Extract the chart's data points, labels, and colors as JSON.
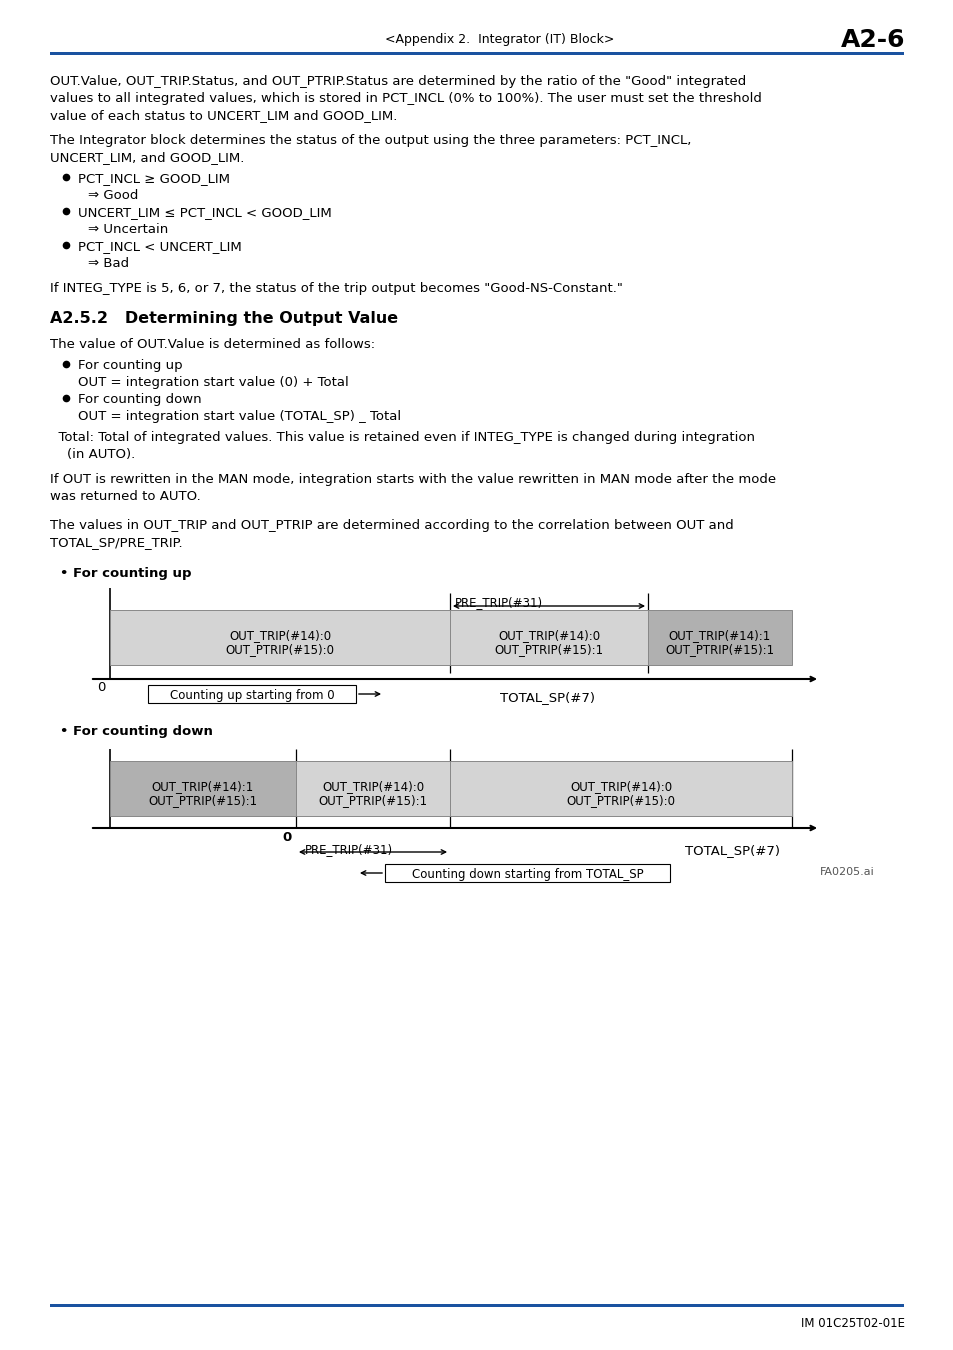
{
  "page_header_left": "<Appendix 2.  Integrator (IT) Block>",
  "page_header_right": "A2-6",
  "header_line_color": "#1a52a0",
  "body_text": [
    "OUT.Value, OUT_TRIP.Status, and OUT_PTRIP.Status are determined by the ratio of the \"Good\" integrated",
    "values to all integrated values, which is stored in PCT_INCL (0% to 100%). The user must set the threshold",
    "value of each status to UNCERT_LIM and GOOD_LIM."
  ],
  "body_text2": "The Integrator block determines the status of the output using the three parameters: PCT_INCL,",
  "body_text3": "UNCERT_LIM, and GOOD_LIM.",
  "bullets": [
    {
      "text": "PCT_INCL ≥ GOOD_LIM",
      "indent": 1
    },
    {
      "text": "⇒ Good",
      "indent": 2
    },
    {
      "text": "UNCERT_LIM ≤ PCT_INCL < GOOD_LIM",
      "indent": 1
    },
    {
      "text": "⇒ Uncertain",
      "indent": 2
    },
    {
      "text": "PCT_INCL < UNCERT_LIM",
      "indent": 1
    },
    {
      "text": "⇒ Bad",
      "indent": 2
    }
  ],
  "note_text": "If INTEG_TYPE is 5, 6, or 7, the status of the trip output becomes \"Good-NS-Constant.\"",
  "section_title": "A2.5.2   Determining the Output Value",
  "section_body1": "The value of OUT.Value is determined as follows:",
  "section_bullets": [
    {
      "text": "For counting up",
      "indent": 1
    },
    {
      "text": "OUT = integration start value (0) + Total",
      "indent": 2
    },
    {
      "text": "For counting down",
      "indent": 1
    },
    {
      "text": "OUT = integration start value (TOTAL_SP) _ Total",
      "indent": 2
    }
  ],
  "total_note": "  Total: Total of integrated values. This value is retained even if INTEG_TYPE is changed during integration",
  "total_note2": "    (in AUTO).",
  "man_note": "If OUT is rewritten in the MAN mode, integration starts with the value rewritten in MAN mode after the mode",
  "man_note2": "was returned to AUTO.",
  "values_note": "The values in OUT_TRIP and OUT_PTRIP are determined according to the correlation between OUT and",
  "values_note2": "TOTAL_SP/PRE_TRIP.",
  "diagram_up_title": "• For counting up",
  "diagram_down_title": "• For counting down",
  "footer_left": "IM 01C25T02-01E",
  "footer_img": "FA0205.ai",
  "bottom_line_color": "#1a52a0"
}
